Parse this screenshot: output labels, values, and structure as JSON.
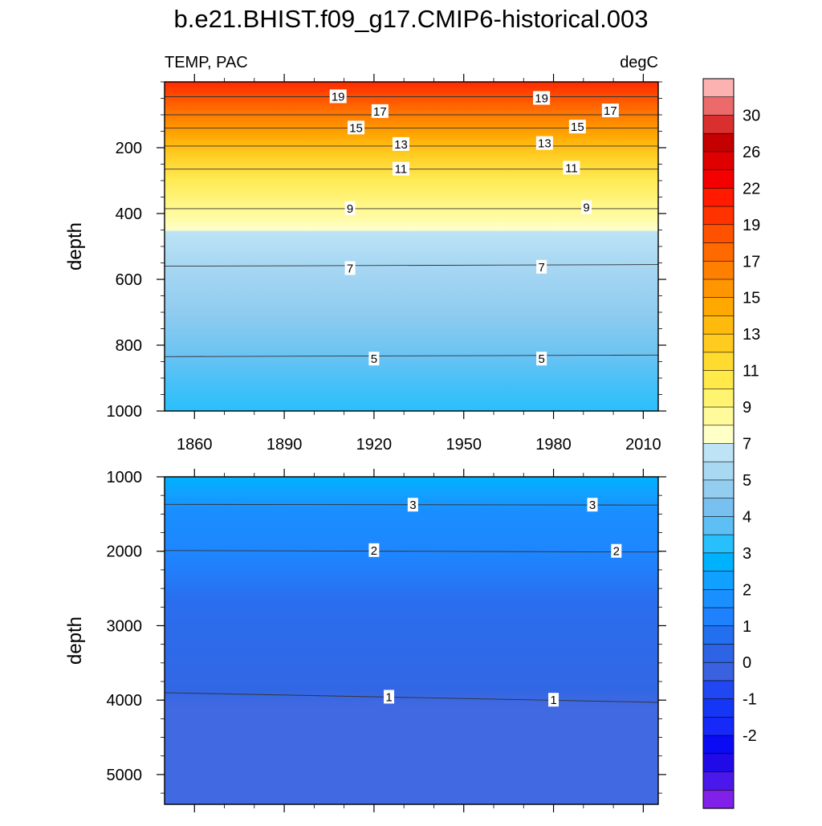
{
  "chart_data": {
    "type": "heatmap",
    "subtype": "filled-contour",
    "title": "b.e21.BHIST.f09_g17.CMIP6-historical.003",
    "left_label": "TEMP, PAC",
    "right_label": "degC",
    "colorbar_labels": [
      "30",
      "26",
      "22",
      "19",
      "17",
      "15",
      "13",
      "11",
      "9",
      "7",
      "5",
      "4",
      "3",
      "2",
      "1",
      "0",
      "-1",
      "-2"
    ],
    "colorbar_colors": [
      "#fdb2b2",
      "#ec6a6a",
      "#da2f2f",
      "#c50000",
      "#df0000",
      "#f50000",
      "#ff1a00",
      "#ff3300",
      "#ff5200",
      "#ff6a00",
      "#ff8000",
      "#ff9500",
      "#ffa800",
      "#ffba0e",
      "#ffcb20",
      "#ffdb2f",
      "#ffea4a",
      "#fff46f",
      "#fffa9a",
      "#ffffc8",
      "#bde3f5",
      "#a9d8f3",
      "#93cdf0",
      "#78c0f0",
      "#5dbff4",
      "#28c0fc",
      "#00b2fe",
      "#10a0ff",
      "#1a8fff",
      "#1e82ff",
      "#226ff0",
      "#2d64e6",
      "#3a61e0",
      "#2047f2",
      "#1537f5",
      "#1629f8",
      "#0a0af5",
      "#200ae8",
      "#4a18ea",
      "#8020e8"
    ],
    "panels": [
      {
        "name": "upper-ocean",
        "xlabel": "",
        "ylabel": "depth",
        "xlim": [
          1850,
          2015
        ],
        "ylim": [
          1000,
          0
        ],
        "x_ticks": [
          "1860",
          "1890",
          "1920",
          "1950",
          "1980",
          "2010"
        ],
        "y_ticks": [
          "200",
          "400",
          "600",
          "800",
          "1000"
        ],
        "series": [
          {
            "name": "19",
            "values": [
              [
                1850,
                45
              ],
              [
                2015,
                45
              ]
            ]
          },
          {
            "name": "17",
            "values": [
              [
                1850,
                100
              ],
              [
                2015,
                100
              ]
            ]
          },
          {
            "name": "15",
            "values": [
              [
                1850,
                140
              ],
              [
                2015,
                140
              ]
            ]
          },
          {
            "name": "13",
            "values": [
              [
                1850,
                195
              ],
              [
                2015,
                195
              ]
            ]
          },
          {
            "name": "11",
            "values": [
              [
                1850,
                265
              ],
              [
                2015,
                265
              ]
            ]
          },
          {
            "name": "9",
            "values": [
              [
                1850,
                385
              ],
              [
                2015,
                385
              ]
            ]
          },
          {
            "name": "7",
            "values": [
              [
                1850,
                560
              ],
              [
                2015,
                555
              ]
            ]
          },
          {
            "name": "5",
            "values": [
              [
                1850,
                835
              ],
              [
                2015,
                830
              ]
            ]
          }
        ],
        "labels": [
          {
            "text": "19",
            "x": 1908,
            "y": 45
          },
          {
            "text": "19",
            "x": 1976,
            "y": 50
          },
          {
            "text": "17",
            "x": 1922,
            "y": 90
          },
          {
            "text": "17",
            "x": 1999,
            "y": 88
          },
          {
            "text": "15",
            "x": 1914,
            "y": 140
          },
          {
            "text": "15",
            "x": 1988,
            "y": 137
          },
          {
            "text": "13",
            "x": 1929,
            "y": 190
          },
          {
            "text": "13",
            "x": 1977,
            "y": 187
          },
          {
            "text": "11",
            "x": 1929,
            "y": 265
          },
          {
            "text": "11",
            "x": 1986,
            "y": 262
          },
          {
            "text": "9",
            "x": 1912,
            "y": 385
          },
          {
            "text": "9",
            "x": 1991,
            "y": 382
          },
          {
            "text": "7",
            "x": 1912,
            "y": 567
          },
          {
            "text": "7",
            "x": 1976,
            "y": 563
          },
          {
            "text": "5",
            "x": 1920,
            "y": 842
          },
          {
            "text": "5",
            "x": 1976,
            "y": 842
          }
        ]
      },
      {
        "name": "deep-ocean",
        "xlabel": "",
        "ylabel": "depth",
        "xlim": [
          1850,
          2015
        ],
        "ylim": [
          5400,
          1000
        ],
        "x_ticks": [],
        "y_ticks": [
          "1000",
          "2000",
          "3000",
          "4000",
          "5000"
        ],
        "series": [
          {
            "name": "3",
            "values": [
              [
                1850,
                1370
              ],
              [
                2015,
                1380
              ]
            ]
          },
          {
            "name": "2",
            "values": [
              [
                1850,
                1990
              ],
              [
                2015,
                2010
              ]
            ]
          },
          {
            "name": "1",
            "values": [
              [
                1850,
                3900
              ],
              [
                2015,
                4030
              ]
            ]
          }
        ],
        "labels": [
          {
            "text": "3",
            "x": 1933,
            "y": 1380
          },
          {
            "text": "3",
            "x": 1993,
            "y": 1380
          },
          {
            "text": "2",
            "x": 1920,
            "y": 1990
          },
          {
            "text": "2",
            "x": 2001,
            "y": 2000
          },
          {
            "text": "1",
            "x": 1925,
            "y": 3960
          },
          {
            "text": "1",
            "x": 1980,
            "y": 4000
          }
        ]
      }
    ]
  }
}
